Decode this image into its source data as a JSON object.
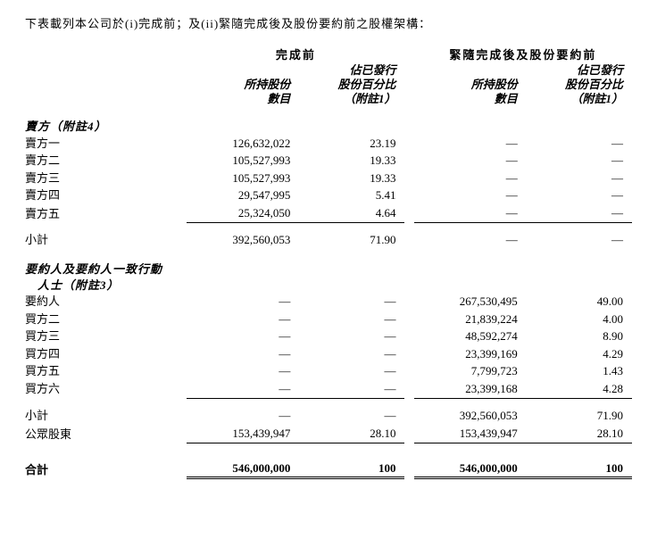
{
  "intro": "下表載列本公司於(i)完成前；及(ii)緊隨完成後及股份要約前之股權架構：",
  "colgroup": {
    "before_title": "完成前",
    "after_title": "緊隨完成後及股份要約前",
    "held_label_l1": "所持股份",
    "held_label_l2": "數目",
    "pct_label_l1": "佔已發行",
    "pct_label_l2": "股份百分比",
    "pct_label_l3": "（附註1）"
  },
  "dash": "—",
  "sections": {
    "sellers": {
      "title": "賣方（附註4）",
      "rows": [
        {
          "label": "賣方一",
          "b_num": "126,632,022",
          "b_pct": "23.19"
        },
        {
          "label": "賣方二",
          "b_num": "105,527,993",
          "b_pct": "19.33"
        },
        {
          "label": "賣方三",
          "b_num": "105,527,993",
          "b_pct": "19.33"
        },
        {
          "label": "賣方四",
          "b_num": "29,547,995",
          "b_pct": "5.41"
        },
        {
          "label": "賣方五",
          "b_num": "25,324,050",
          "b_pct": "4.64"
        }
      ],
      "subtotal": {
        "label": "小計",
        "b_num": "392,560,053",
        "b_pct": "71.90"
      }
    },
    "offeror": {
      "title_l1": "要約人及要約人一致行動",
      "title_l2": "人士（附註3）",
      "rows": [
        {
          "label": "要約人",
          "a_num": "267,530,495",
          "a_pct": "49.00"
        },
        {
          "label": "買方二",
          "a_num": "21,839,224",
          "a_pct": "4.00"
        },
        {
          "label": "買方三",
          "a_num": "48,592,274",
          "a_pct": "8.90"
        },
        {
          "label": "買方四",
          "a_num": "23,399,169",
          "a_pct": "4.29"
        },
        {
          "label": "買方五",
          "a_num": "7,799,723",
          "a_pct": "1.43"
        },
        {
          "label": "買方六",
          "a_num": "23,399,168",
          "a_pct": "4.28"
        }
      ],
      "subtotal": {
        "label": "小計",
        "a_num": "392,560,053",
        "a_pct": "71.90"
      }
    },
    "public": {
      "label": "公眾股東",
      "b_num": "153,439,947",
      "b_pct": "28.10",
      "a_num": "153,439,947",
      "a_pct": "28.10"
    },
    "total": {
      "label": "合計",
      "b_num": "546,000,000",
      "b_pct": "100",
      "a_num": "546,000,000",
      "a_pct": "100"
    }
  }
}
